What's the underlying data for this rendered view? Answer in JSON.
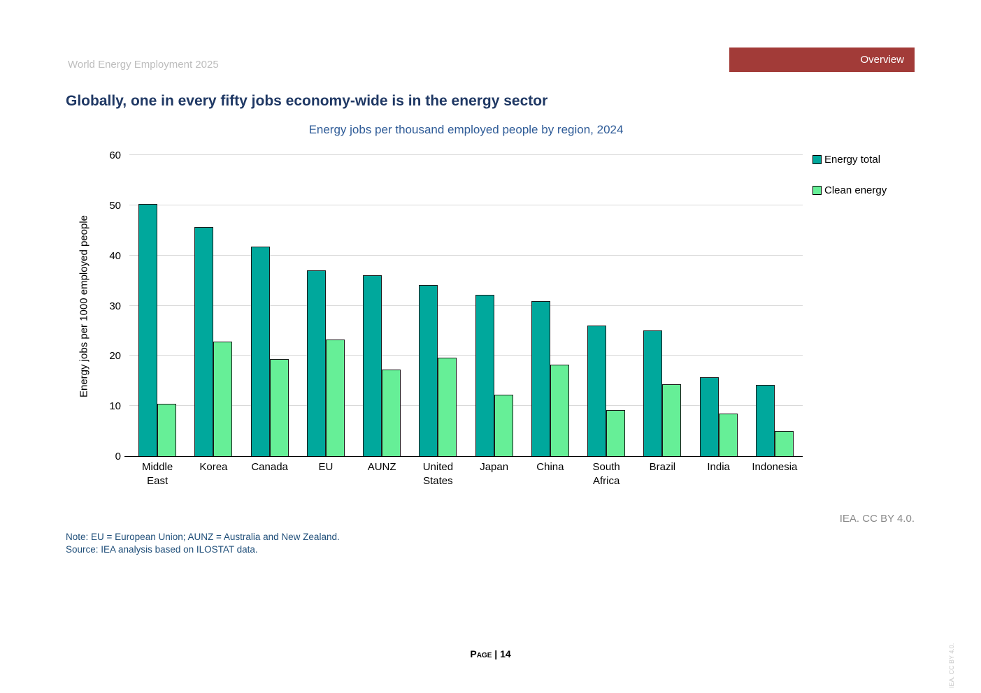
{
  "header": {
    "report_title": "World Energy Employment 2025",
    "section_label": "Overview"
  },
  "title": "Globally, one in every fifty jobs economy-wide is in the energy sector",
  "chart_data": {
    "type": "bar",
    "title": "Energy jobs per thousand employed people by region, 2024",
    "xlabel": "",
    "ylabel": "Energy jobs per 1000 employed people",
    "ylim": [
      0,
      60
    ],
    "yticks": [
      0,
      10,
      20,
      30,
      40,
      50,
      60
    ],
    "grid": true,
    "legend_position": "top-right",
    "categories": [
      "Middle East",
      "Korea",
      "Canada",
      "EU",
      "AUNZ",
      "United States",
      "Japan",
      "China",
      "South Africa",
      "Brazil",
      "India",
      "Indonesia"
    ],
    "series": [
      {
        "name": "Energy total",
        "color": "#00a89c",
        "values": [
          50.2,
          45.6,
          41.8,
          37.0,
          36.1,
          34.1,
          32.1,
          30.9,
          26.0,
          25.0,
          15.8,
          14.2
        ]
      },
      {
        "name": "Clean energy",
        "color": "#66ef97",
        "values": [
          10.5,
          22.8,
          19.4,
          23.2,
          17.3,
          19.6,
          12.2,
          18.3,
          9.2,
          14.3,
          8.5,
          5.0
        ]
      }
    ]
  },
  "attribution": "IEA. CC BY 4.0.",
  "notes": {
    "note": "Note: EU = European Union; AUNZ = Australia and New Zealand.",
    "source": "Source: IEA analysis based on ILOSTAT data."
  },
  "footer": {
    "page_label": "Page | 14",
    "side_attribution": "IEA. CC BY 4.0."
  },
  "colors": {
    "banner_background": "#a23b38",
    "banner_text": "#ffffff",
    "title_text": "#1f3864",
    "subtitle_text": "#2e5b97",
    "note_text": "#1f4e79",
    "muted_text": "#bdbdbd",
    "attribution_text": "#8a8a8a",
    "gridline": "#d9d9d9",
    "energy_total_bar": "#00a89c",
    "clean_energy_bar": "#66ef97"
  }
}
